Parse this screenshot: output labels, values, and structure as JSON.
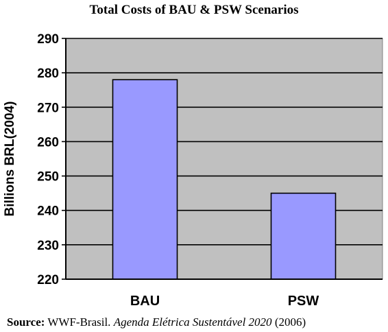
{
  "chart_data": {
    "type": "bar",
    "title": "Total Costs of BAU & PSW Scenarios",
    "ylabel": "Billions BRL(2004)",
    "xlabel": "",
    "categories": [
      "BAU",
      "PSW"
    ],
    "values": [
      278,
      245
    ],
    "ylim": [
      220,
      290
    ],
    "yticks": [
      220,
      230,
      240,
      250,
      260,
      270,
      280,
      290
    ],
    "grid": true,
    "colors": {
      "bar": "#9999ff",
      "plot_bg": "#c0c0c0",
      "grid": "#000000"
    }
  },
  "source": {
    "label": "Source:",
    "org": "WWF-Brasil.",
    "publication": "Agenda Elétrica Sustentável 2020",
    "year": "(2006)"
  }
}
